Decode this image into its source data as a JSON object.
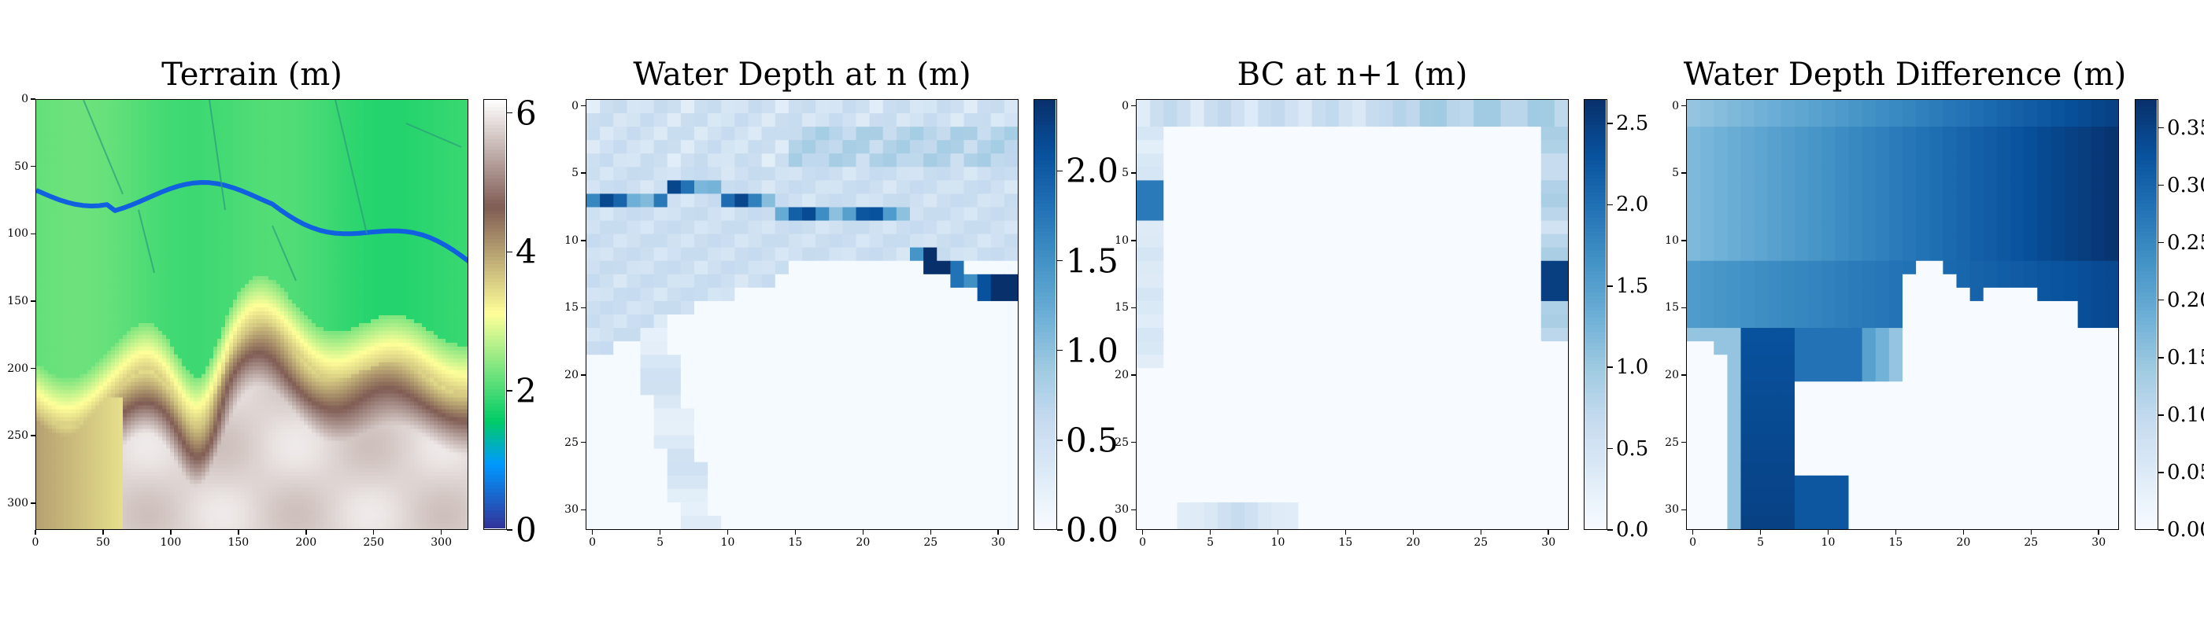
{
  "chart_data": [
    {
      "type": "heatmap",
      "title": "Terrain (m)",
      "colormap": "terrain",
      "xticks": [
        "0",
        "50",
        "100",
        "150",
        "200",
        "250",
        "300"
      ],
      "xtick_values": [
        0,
        50,
        100,
        150,
        200,
        250,
        300
      ],
      "yticks": [
        "0",
        "50",
        "100",
        "150",
        "200",
        "250",
        "300"
      ],
      "ytick_values": [
        0,
        50,
        100,
        150,
        200,
        250,
        300
      ],
      "xlim": [
        0,
        320
      ],
      "ylim": [
        320,
        0
      ],
      "colorbar": {
        "ticks": [
          "0",
          "2",
          "4",
          "6"
        ],
        "values": [
          0,
          2,
          4,
          6
        ],
        "range": [
          0,
          6.2
        ]
      }
    },
    {
      "type": "heatmap",
      "title": "Water Depth at n (m)",
      "colormap": "Blues",
      "xticks": [
        "0",
        "5",
        "10",
        "15",
        "20",
        "25",
        "30"
      ],
      "xtick_values": [
        0,
        5,
        10,
        15,
        20,
        25,
        30
      ],
      "yticks": [
        "0",
        "5",
        "10",
        "15",
        "20",
        "25",
        "30"
      ],
      "ytick_values": [
        0,
        5,
        10,
        15,
        20,
        25,
        30
      ],
      "xlim": [
        -0.5,
        31.5
      ],
      "ylim": [
        31.5,
        -0.5
      ],
      "colorbar": {
        "ticks": [
          "0.0",
          "0.5",
          "1.0",
          "1.5",
          "2.0"
        ],
        "values": [
          0,
          0.5,
          1.0,
          1.5,
          2.0
        ],
        "range": [
          0,
          2.4
        ]
      }
    },
    {
      "type": "heatmap",
      "title": "BC at n+1 (m)",
      "colormap": "Blues",
      "xticks": [
        "0",
        "5",
        "10",
        "15",
        "20",
        "25",
        "30"
      ],
      "xtick_values": [
        0,
        5,
        10,
        15,
        20,
        25,
        30
      ],
      "yticks": [
        "0",
        "5",
        "10",
        "15",
        "20",
        "25",
        "30"
      ],
      "ytick_values": [
        0,
        5,
        10,
        15,
        20,
        25,
        30
      ],
      "xlim": [
        -0.5,
        31.5
      ],
      "ylim": [
        31.5,
        -0.5
      ],
      "colorbar": {
        "ticks": [
          "0.0",
          "0.5",
          "1.0",
          "1.5",
          "2.0",
          "2.5"
        ],
        "values": [
          0,
          0.5,
          1.0,
          1.5,
          2.0,
          2.5
        ],
        "range": [
          0,
          2.65
        ]
      }
    },
    {
      "type": "heatmap",
      "title": "Water Depth Difference (m)",
      "colormap": "Blues",
      "xticks": [
        "0",
        "5",
        "10",
        "15",
        "20",
        "25",
        "30"
      ],
      "xtick_values": [
        0,
        5,
        10,
        15,
        20,
        25,
        30
      ],
      "yticks": [
        "0",
        "5",
        "10",
        "15",
        "20",
        "25",
        "30"
      ],
      "ytick_values": [
        0,
        5,
        10,
        15,
        20,
        25,
        30
      ],
      "xlim": [
        -0.5,
        31.5
      ],
      "ylim": [
        31.5,
        -0.5
      ],
      "colorbar": {
        "ticks": [
          "0.00",
          "0.05",
          "0.10",
          "0.15",
          "0.20",
          "0.25",
          "0.30",
          "0.35"
        ],
        "values": [
          0,
          0.05,
          0.1,
          0.15,
          0.2,
          0.25,
          0.3,
          0.35
        ],
        "range": [
          0,
          0.375
        ]
      }
    }
  ]
}
